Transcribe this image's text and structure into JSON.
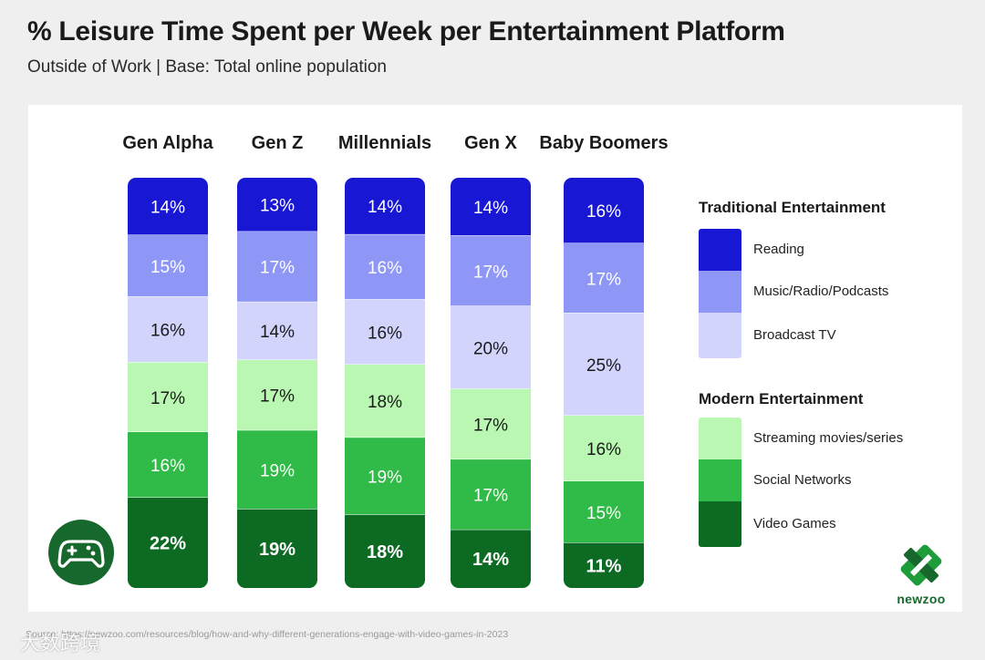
{
  "title": "% Leisure Time Spent per Week per Entertainment Platform",
  "subtitle": "Outside of Work |  Base: Total online population",
  "source": "Source: https://newzoo.com/resources/blog/how-and-why-different-generations-engage-with-video-games-in-2023",
  "watermark": "大数跨境",
  "logo": {
    "text": "newzoo"
  },
  "legend": {
    "traditional_title": "Traditional Entertainment",
    "modern_title": "Modern Entertainment"
  },
  "chart_data": {
    "type": "bar",
    "stacked": true,
    "title": "% Leisure Time Spent per Week per Entertainment Platform",
    "subtitle": "Outside of Work |  Base: Total online population",
    "categories": [
      "Gen Alpha",
      "Gen Z",
      "Millennials",
      "Gen X",
      "Baby Boomers"
    ],
    "series": [
      {
        "name": "Reading",
        "group": "Traditional Entertainment",
        "color": "#1818d4",
        "text_color": "#ffffff",
        "values": [
          14,
          13,
          14,
          14,
          16
        ]
      },
      {
        "name": "Music/Radio/Podcasts",
        "group": "Traditional Entertainment",
        "color": "#8f97f6",
        "text_color": "#ffffff",
        "values": [
          15,
          17,
          16,
          17,
          17
        ]
      },
      {
        "name": "Broadcast TV",
        "group": "Traditional Entertainment",
        "color": "#d3d4fb",
        "text_color": "#1a1a1a",
        "values": [
          16,
          14,
          16,
          20,
          25
        ]
      },
      {
        "name": "Streaming movies/series",
        "group": "Modern Entertainment",
        "color": "#b9f7b2",
        "text_color": "#1a1a1a",
        "values": [
          17,
          17,
          18,
          17,
          16
        ]
      },
      {
        "name": "Social Networks",
        "group": "Modern Entertainment",
        "color": "#30ba47",
        "text_color": "#ffffff",
        "values": [
          16,
          19,
          19,
          17,
          15
        ]
      },
      {
        "name": "Video Games",
        "group": "Modern Entertainment",
        "color": "#0d6a23",
        "text_color": "#ffffff",
        "values": [
          22,
          19,
          18,
          14,
          11
        ],
        "bold": true
      }
    ],
    "value_suffix": "%",
    "ylim": [
      0,
      100
    ],
    "legend_position": "right"
  }
}
